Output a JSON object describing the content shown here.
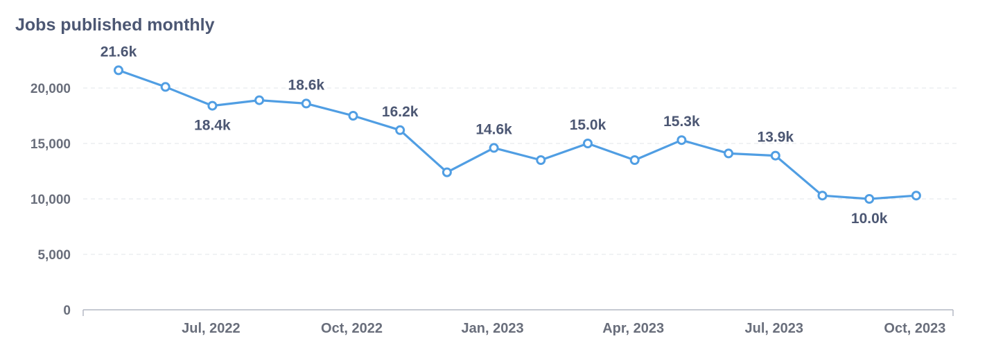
{
  "chart_data": {
    "type": "line",
    "title": "Jobs published monthly",
    "xlabel": "",
    "ylabel": "",
    "ylim": [
      0,
      21600
    ],
    "yticks": [
      0,
      5000,
      10000,
      15000,
      20000
    ],
    "ytick_labels": [
      "0",
      "5,000",
      "10,000",
      "15,000",
      "20,000"
    ],
    "x": [
      "2022-05",
      "2022-06",
      "2022-07",
      "2022-08",
      "2022-09",
      "2022-10",
      "2022-11",
      "2022-12",
      "2023-01",
      "2023-02",
      "2023-03",
      "2023-04",
      "2023-05",
      "2023-06",
      "2023-07",
      "2023-08",
      "2023-09",
      "2023-10"
    ],
    "xticks": [
      "2022-07",
      "2022-10",
      "2023-01",
      "2023-04",
      "2023-07",
      "2023-10"
    ],
    "xtick_labels": [
      "Jul, 2022",
      "Oct, 2022",
      "Jan, 2023",
      "Apr, 2023",
      "Jul, 2023",
      "Oct, 2023"
    ],
    "series": [
      {
        "values": [
          21600,
          20100,
          18400,
          18900,
          18600,
          17500,
          16200,
          12400,
          14600,
          13500,
          15000,
          13500,
          15300,
          14100,
          13900,
          10300,
          10000,
          10300
        ]
      }
    ],
    "data_labels": [
      {
        "x": "2022-05",
        "text": "21.6k",
        "position": "above"
      },
      {
        "x": "2022-07",
        "text": "18.4k",
        "position": "below"
      },
      {
        "x": "2022-09",
        "text": "18.6k",
        "position": "above"
      },
      {
        "x": "2022-11",
        "text": "16.2k",
        "position": "above"
      },
      {
        "x": "2023-01",
        "text": "14.6k",
        "position": "above"
      },
      {
        "x": "2023-03",
        "text": "15.0k",
        "position": "above"
      },
      {
        "x": "2023-05",
        "text": "15.3k",
        "position": "above"
      },
      {
        "x": "2023-07",
        "text": "13.9k",
        "position": "above"
      },
      {
        "x": "2023-09",
        "text": "10.0k",
        "position": "below"
      }
    ],
    "grid": true,
    "legend": "none",
    "colors": {
      "line": "#509ee3",
      "grid": "#eceef0",
      "axis": "#b4b9c4",
      "text": "#696e7b",
      "label": "#4c5773"
    }
  }
}
